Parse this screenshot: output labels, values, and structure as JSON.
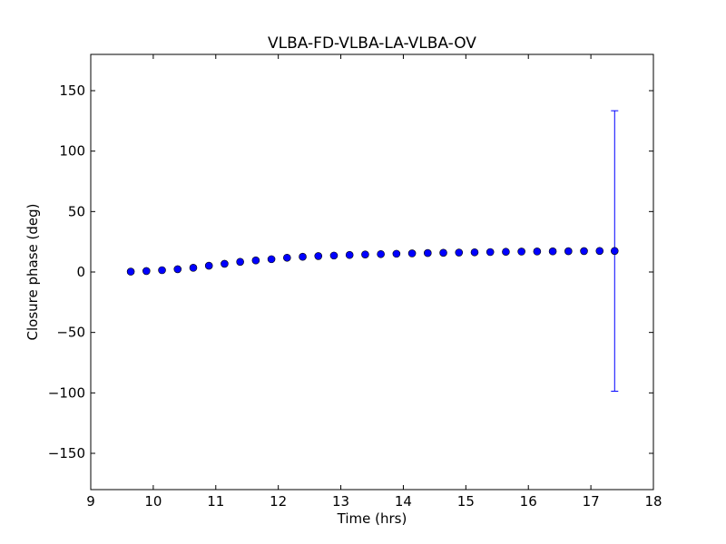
{
  "chart_data": {
    "type": "scatter",
    "title": "VLBA-FD-VLBA-LA-VLBA-OV",
    "xlabel": "Time (hrs)",
    "ylabel": "Closure phase (deg)",
    "xlim": [
      9,
      18
    ],
    "ylim": [
      -180,
      180
    ],
    "xticks": [
      "9",
      "10",
      "11",
      "12",
      "13",
      "14",
      "15",
      "16",
      "17",
      "18"
    ],
    "yticks": [
      "−150",
      "−100",
      "−50",
      "0",
      "50",
      "100",
      "150"
    ],
    "grid": false,
    "marker_color": "#0000ff",
    "series": [
      {
        "x": [
          9.64,
          9.89,
          10.14,
          10.39,
          10.64,
          10.89,
          11.14,
          11.39,
          11.64,
          11.89,
          12.14,
          12.39,
          12.64,
          12.89,
          13.14,
          13.39,
          13.64,
          13.89,
          14.14,
          14.39,
          14.64,
          14.89,
          15.14,
          15.39,
          15.64,
          15.89,
          16.14,
          16.39,
          16.64,
          16.89,
          17.14,
          17.38
        ],
        "y": [
          0.3,
          0.8,
          1.5,
          2.3,
          3.5,
          5.2,
          6.8,
          8.4,
          9.6,
          10.6,
          11.8,
          12.6,
          13.2,
          13.6,
          14.1,
          14.5,
          14.8,
          15.1,
          15.4,
          15.7,
          15.9,
          16.1,
          16.3,
          16.5,
          16.7,
          16.9,
          17.0,
          17.1,
          17.2,
          17.3,
          17.4,
          17.4
        ],
        "errors": [
          0,
          0,
          0,
          0,
          0,
          0,
          0,
          0,
          0,
          0,
          0,
          0,
          0,
          0,
          0,
          0,
          0,
          0,
          0,
          0,
          0,
          0,
          0,
          0,
          0,
          0,
          0,
          0,
          0,
          0,
          0,
          116
        ]
      }
    ]
  }
}
